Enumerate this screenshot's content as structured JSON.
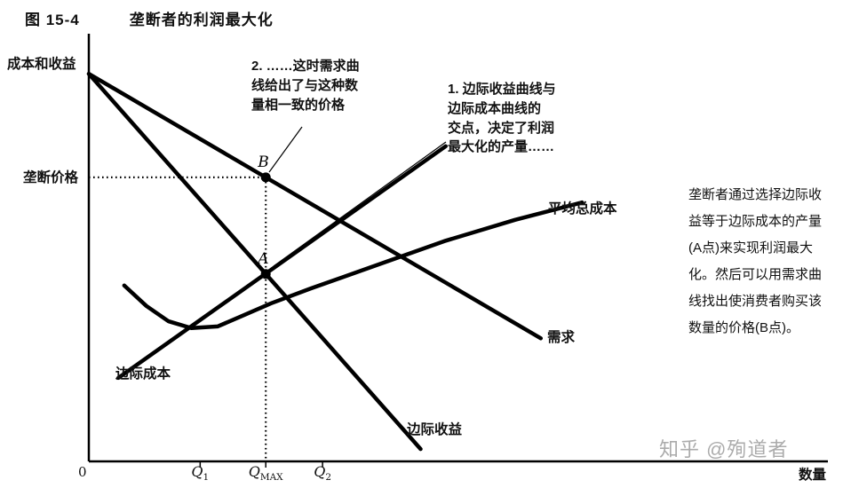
{
  "header": {
    "fig_label": "图 15-4",
    "title": "垄断者的利润最大化"
  },
  "axes": {
    "y_label": "成本和收益",
    "x_label": "数量",
    "origin_label": "0",
    "monopoly_price_label": "垄断价格",
    "x_ticks": [
      {
        "label_main": "Q",
        "label_sub": "1",
        "u": 15.1
      },
      {
        "label_main": "Q",
        "label_sub": "MAX",
        "u": 24
      },
      {
        "label_main": "Q",
        "label_sub": "2",
        "u": 31.7
      }
    ]
  },
  "chart_data": {
    "type": "line",
    "title": "垄断者的利润最大化",
    "xlabel": "数量",
    "ylabel": "成本和收益",
    "axis_note": "conceptual diagram, no numeric scale shown; coordinates normalized 0-100 on both axes",
    "grid": false,
    "stroke_color": "#000000",
    "series": [
      {
        "name": "需求",
        "role": "demand",
        "points": [
          [
            0,
            91
          ],
          [
            61.3,
            28.9
          ]
        ]
      },
      {
        "name": "边际收益",
        "role": "marginal-revenue",
        "points": [
          [
            0,
            91
          ],
          [
            45,
            2.9
          ]
        ]
      },
      {
        "name": "边际成本",
        "role": "marginal-cost",
        "points": [
          [
            4,
            19.6
          ],
          [
            48.4,
            74
          ]
        ]
      },
      {
        "name": "平均总成本",
        "role": "average-total-cost",
        "points": [
          [
            4.8,
            41.3
          ],
          [
            7.8,
            36.5
          ],
          [
            10.8,
            32.9
          ],
          [
            13.9,
            31.3
          ],
          [
            17.5,
            31.7
          ],
          [
            21.1,
            34.4
          ],
          [
            24.7,
            37.1
          ],
          [
            30.1,
            40.6
          ],
          [
            38.6,
            45.8
          ],
          [
            48.2,
            51.7
          ],
          [
            57.8,
            56.7
          ],
          [
            66.9,
            60.8
          ]
        ]
      }
    ],
    "key_points": [
      {
        "label": "A",
        "u": 24,
        "v": 44,
        "meaning": "边际收益曲线与边际成本曲线的交点"
      },
      {
        "label": "B",
        "u": 24,
        "v": 66.7,
        "meaning": "需求曲线上与利润最大化产量对应的价格点"
      }
    ],
    "dotted_guides": {
      "price_v": 66.7,
      "quantity_u": 24
    }
  },
  "curve_labels": {
    "demand": "需求",
    "marginal_revenue": "边际收益",
    "marginal_cost": "边际成本",
    "average_total_cost": "平均总成本"
  },
  "annotations": {
    "note1": "1. 边际收益曲线与\n边际成本曲线的\n交点，决定了利润\n最大化的产量……",
    "note2": "2. ……这时需求曲\n线给出了与这种数\n量相一致的价格"
  },
  "side_note": "垄断者通过选择边际收\n益等于边际成本的产量\n(A点)来实现利润最大\n化。然后可以用需求曲\n线找出使消费者购买该\n数量的价格(B点)。",
  "watermark": "知乎 @殉道者"
}
